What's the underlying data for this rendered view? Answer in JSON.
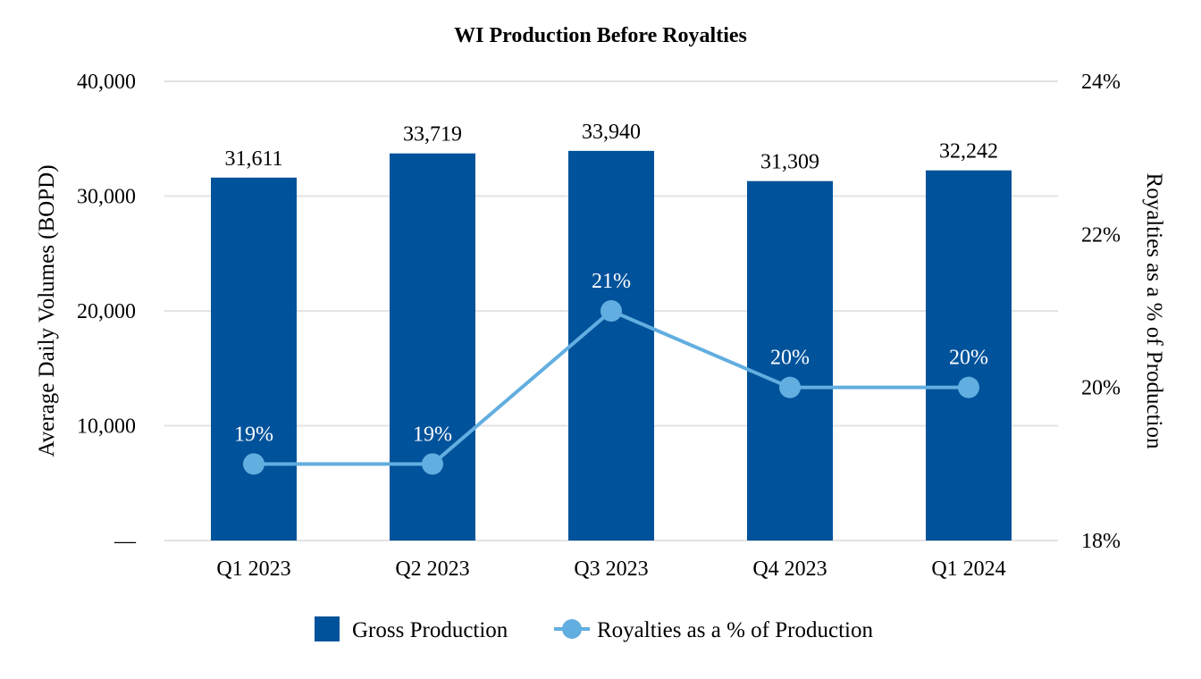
{
  "chart_data": {
    "type": "bar",
    "title": "WI Production Before Royalties",
    "categories": [
      "Q1 2023",
      "Q2 2023",
      "Q3 2023",
      "Q4 2023",
      "Q1 2024"
    ],
    "series": [
      {
        "name": "Gross Production",
        "type": "bar",
        "axis": "left",
        "values": [
          31611,
          33719,
          33940,
          31309,
          32242
        ],
        "labels": [
          "31,611",
          "33,719",
          "33,940",
          "31,309",
          "32,242"
        ],
        "color": "#00529b"
      },
      {
        "name": "Royalties as a % of Production",
        "type": "line",
        "axis": "right",
        "values": [
          19,
          19,
          21,
          20,
          20
        ],
        "labels": [
          "19%",
          "19%",
          "21%",
          "20%",
          "20%"
        ],
        "color": "#62aee0"
      }
    ],
    "ylabel": "Average Daily Volumes (BOPD)",
    "ylim": [
      0,
      40000
    ],
    "yticks": [
      0,
      10000,
      20000,
      30000,
      40000
    ],
    "ytick_labels": [
      "—",
      "10,000",
      "20,000",
      "30,000",
      "40,000"
    ],
    "y2label": "Royalties as a % of Production",
    "y2lim": [
      18,
      24
    ],
    "y2ticks": [
      18,
      20,
      22,
      24
    ],
    "y2tick_labels": [
      "18%",
      "20%",
      "22%",
      "24%"
    ],
    "grid": true,
    "legend": "bottom-center"
  }
}
